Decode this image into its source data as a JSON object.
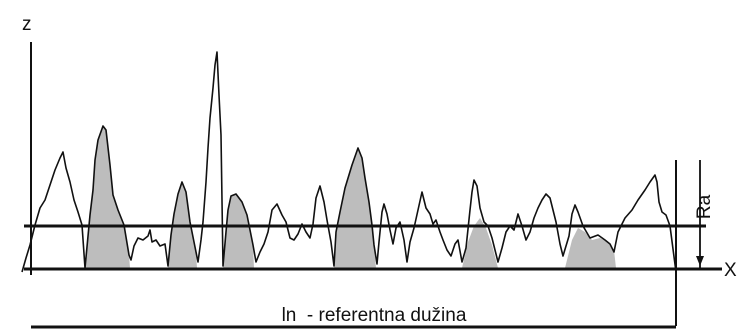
{
  "diagram": {
    "z_axis_label": "z",
    "x_axis_label": "X",
    "ra_label": "Ra",
    "reference_length_label": "ln  - referentna dužina"
  },
  "colors": {
    "line": "#111111",
    "fill": "#bdbdbd",
    "background": "#ffffff"
  }
}
